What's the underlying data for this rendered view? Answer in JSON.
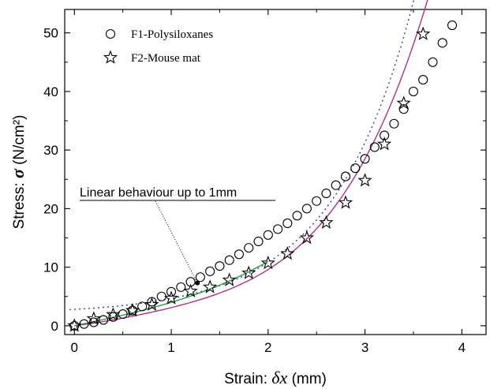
{
  "chart_data": {
    "type": "scatter",
    "xlabel_prefix": "Strain: ",
    "xlabel_symbol": "δx",
    "xlabel_suffix": " (mm)",
    "ylabel_prefix": "Stress: ",
    "ylabel_symbol": "σ",
    "ylabel_suffix": " (N/cm²)",
    "xlim": [
      -0.1,
      4.25
    ],
    "ylim": [
      -1.5,
      54
    ],
    "x_ticks": [
      0,
      1,
      2,
      3,
      4
    ],
    "y_ticks": [
      0,
      10,
      20,
      30,
      40,
      50
    ],
    "grid": false,
    "legend_position": "top-left",
    "series": [
      {
        "name": "F1-Polysiloxanes",
        "marker": "circle",
        "color": "#000000",
        "x": [
          0,
          0.1,
          0.2,
          0.3,
          0.4,
          0.5,
          0.6,
          0.7,
          0.8,
          0.9,
          1.0,
          1.1,
          1.2,
          1.3,
          1.4,
          1.5,
          1.6,
          1.7,
          1.8,
          1.9,
          2.0,
          2.1,
          2.2,
          2.3,
          2.4,
          2.5,
          2.6,
          2.7,
          2.8,
          2.9,
          3.0,
          3.1,
          3.2,
          3.3,
          3.4,
          3.5,
          3.6,
          3.7,
          3.8,
          3.9
        ],
        "y": [
          0,
          0.3,
          0.6,
          1.0,
          1.5,
          2.0,
          2.6,
          3.3,
          4.1,
          5.0,
          5.8,
          6.6,
          7.5,
          8.3,
          9.3,
          10.2,
          11.2,
          12.2,
          13.3,
          14.4,
          15.5,
          16.5,
          17.5,
          18.8,
          20.0,
          21.3,
          22.6,
          24.0,
          25.5,
          26.9,
          28.5,
          30.5,
          32.5,
          34.5,
          37.0,
          40.0,
          42.0,
          45.0,
          48.3,
          51.3
        ]
      },
      {
        "name": "F2-Mouse mat",
        "marker": "star",
        "color": "#000000",
        "x": [
          0,
          0.2,
          0.4,
          0.6,
          0.8,
          1.0,
          1.2,
          1.4,
          1.6,
          1.8,
          2.0,
          2.2,
          2.4,
          2.6,
          2.8,
          3.0,
          3.2,
          3.4,
          3.6
        ],
        "y": [
          0,
          1.2,
          1.9,
          2.6,
          3.6,
          4.7,
          5.9,
          6.6,
          7.8,
          9.0,
          10.7,
          12.3,
          15.0,
          17.6,
          21.0,
          24.8,
          31.0,
          38.0,
          49.8
        ]
      }
    ],
    "fits": [
      {
        "name": "fit-f1",
        "color": "#b0308a",
        "dash": "",
        "x_range": [
          0,
          3.9
        ],
        "coeffs": [
          0,
          2.0,
          1.6,
          -0.9,
          0.4
        ]
      },
      {
        "name": "fit-f2-exponential",
        "color": "#2c3fb8",
        "dash": "2,4",
        "x_range": [
          -0.05,
          3.65
        ],
        "exp": [
          2.0,
          0.8,
          1.2
        ]
      },
      {
        "name": "fit-linear-1mm",
        "color": "#2e9c3f",
        "dash": "",
        "x_range": [
          0,
          2.0
        ],
        "coeffs": [
          0,
          3.5,
          0.0,
          0.5
        ]
      }
    ],
    "annotation": {
      "text": "Linear behaviour up to 1mm",
      "target": [
        1.27,
        7.3
      ]
    }
  }
}
